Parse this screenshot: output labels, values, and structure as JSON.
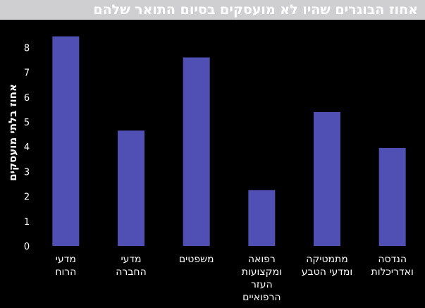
{
  "chart_data": {
    "type": "bar",
    "title": "אחוז הבוגרים שהיו לא מועסקים בסיום התואר שלהם",
    "ylabel": "אחוז בלתי מועסקים",
    "xlabel": "",
    "ylim": [
      0,
      8.5
    ],
    "yticks": [
      0,
      1,
      2,
      3,
      4,
      5,
      6,
      7,
      8
    ],
    "grid": false,
    "categories": [
      [
        "מדעי",
        "הרוח"
      ],
      [
        "מדעי",
        "החברה"
      ],
      [
        "משפטים"
      ],
      [
        "רפואה",
        "ומקצועות",
        "העזר",
        "הרפואיים"
      ],
      [
        "מתמטיקה",
        "ומדעי הטבע"
      ],
      [
        "הנדסה",
        "ואדריכלות"
      ]
    ],
    "values": [
      8.45,
      4.65,
      7.6,
      2.25,
      5.4,
      3.95
    ],
    "colors": {
      "bar": "#5050b4",
      "title_band": "#cfcfd2",
      "background": "#000000",
      "text": "#ffffff"
    }
  }
}
